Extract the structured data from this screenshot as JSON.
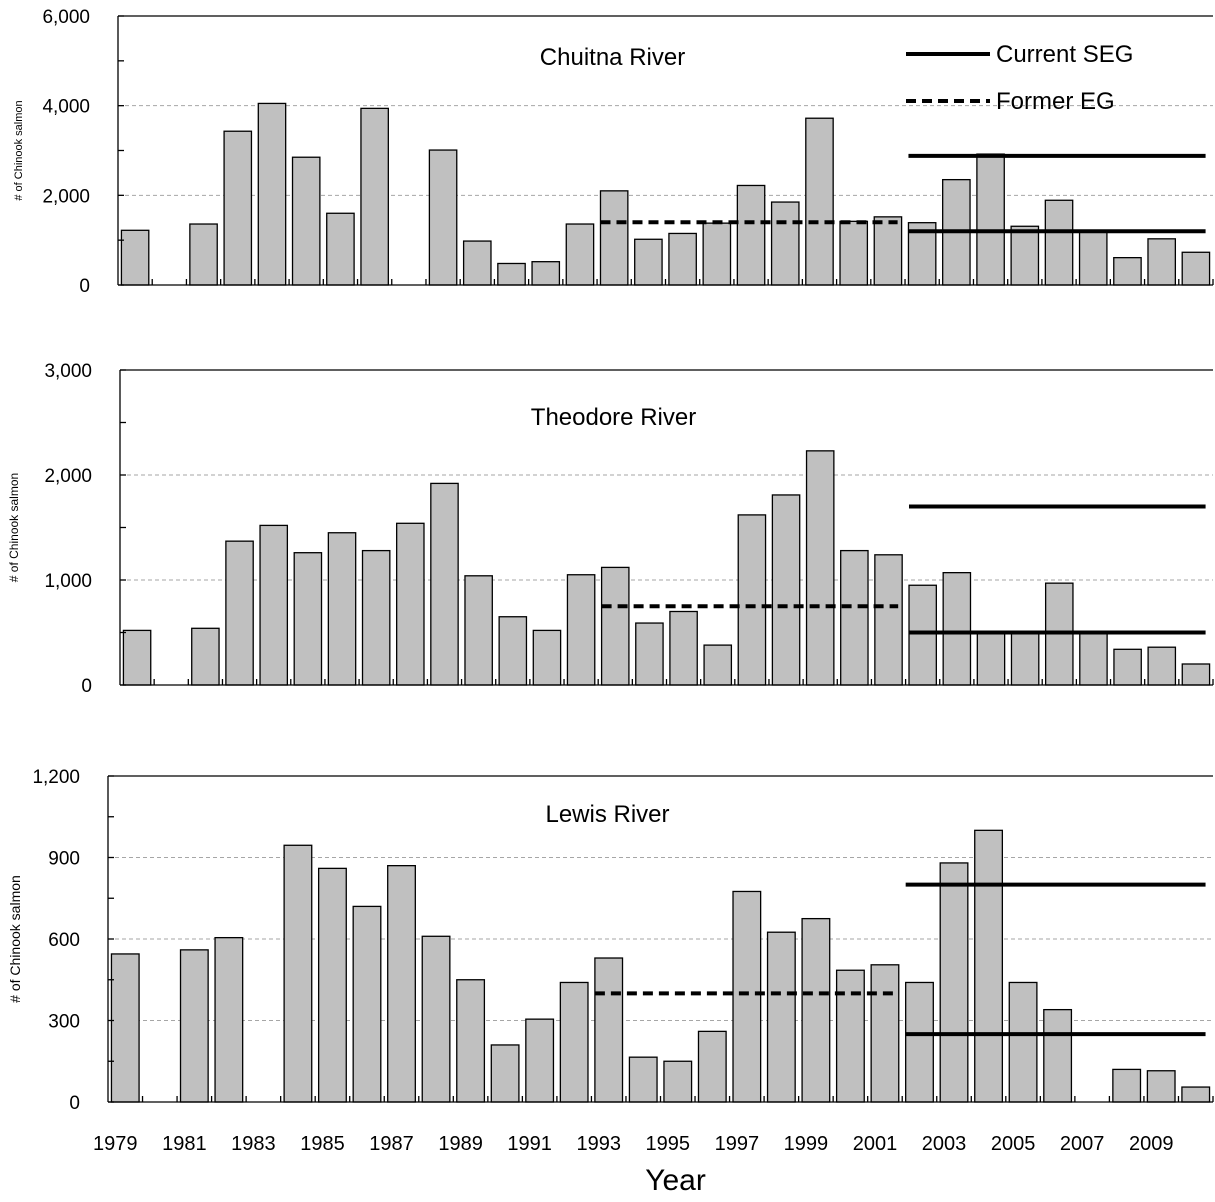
{
  "chart_data": [
    {
      "type": "bar",
      "title": "Chuitna River",
      "ylabel": "# of Chinook salmon",
      "ylim": [
        0,
        6000
      ],
      "yticks": [
        "0",
        "2,000",
        "4,000",
        "6,000"
      ],
      "ytick_values": [
        0,
        2000,
        4000,
        6000
      ],
      "gridlines": [
        2000,
        4000
      ],
      "categories": [
        1979,
        1980,
        1981,
        1982,
        1983,
        1984,
        1985,
        1986,
        1987,
        1988,
        1989,
        1990,
        1991,
        1992,
        1993,
        1994,
        1995,
        1996,
        1997,
        1998,
        1999,
        2000,
        2001,
        2002,
        2003,
        2004,
        2005,
        2006,
        2007,
        2008,
        2009,
        2010
      ],
      "values": [
        1220,
        0,
        1360,
        3430,
        4050,
        2850,
        1600,
        3940,
        0,
        3010,
        980,
        480,
        520,
        1360,
        2100,
        1020,
        1150,
        1380,
        2220,
        1850,
        3720,
        1420,
        1520,
        1390,
        2350,
        2920,
        1310,
        1890,
        1180,
        610,
        1030,
        730
      ],
      "goal_lines": [
        {
          "series": "Current SEG",
          "style": "solid",
          "value": 2880,
          "x_start": 2002,
          "x_end": 2010
        },
        {
          "series": "Current SEG",
          "style": "solid",
          "value": 1200,
          "x_start": 2002,
          "x_end": 2010
        },
        {
          "series": "Former EG",
          "style": "dashed",
          "value": 1400,
          "x_start": 1993,
          "x_end": 2001
        }
      ],
      "legend": {
        "placement": "top-right",
        "entries": [
          {
            "label": "Current SEG",
            "style": "solid"
          },
          {
            "label": "Former EG",
            "style": "dashed"
          }
        ]
      }
    },
    {
      "type": "bar",
      "title": "Theodore River",
      "ylabel": "# of Chinook salmon",
      "ylim": [
        0,
        3000
      ],
      "yticks": [
        "0",
        "1,000",
        "2,000",
        "3,000"
      ],
      "ytick_values": [
        0,
        1000,
        2000,
        3000
      ],
      "gridlines": [
        1000,
        2000
      ],
      "categories": [
        1979,
        1980,
        1981,
        1982,
        1983,
        1984,
        1985,
        1986,
        1987,
        1988,
        1989,
        1990,
        1991,
        1992,
        1993,
        1994,
        1995,
        1996,
        1997,
        1998,
        1999,
        2000,
        2001,
        2002,
        2003,
        2004,
        2005,
        2006,
        2007,
        2008,
        2009,
        2010
      ],
      "values": [
        520,
        0,
        540,
        1370,
        1520,
        1260,
        1450,
        1280,
        1540,
        1920,
        1040,
        650,
        520,
        1050,
        1120,
        590,
        700,
        380,
        1620,
        1810,
        2230,
        1280,
        1240,
        950,
        1070,
        500,
        500,
        970,
        500,
        340,
        360,
        200
      ],
      "goal_lines": [
        {
          "series": "Current SEG",
          "style": "solid",
          "value": 1700,
          "x_start": 2002,
          "x_end": 2010
        },
        {
          "series": "Current SEG",
          "style": "solid",
          "value": 500,
          "x_start": 2002,
          "x_end": 2010
        },
        {
          "series": "Former EG",
          "style": "dashed",
          "value": 750,
          "x_start": 1993,
          "x_end": 2001
        }
      ]
    },
    {
      "type": "bar",
      "title": "Lewis River",
      "xlabel": "Year",
      "ylabel": "# of Chinook salmon",
      "ylim": [
        0,
        1200
      ],
      "yticks": [
        "0",
        "300",
        "600",
        "900",
        "1,200"
      ],
      "ytick_values": [
        0,
        300,
        600,
        900,
        1200
      ],
      "gridlines": [
        300,
        600,
        900
      ],
      "categories": [
        1979,
        1980,
        1981,
        1982,
        1983,
        1984,
        1985,
        1986,
        1987,
        1988,
        1989,
        1990,
        1991,
        1992,
        1993,
        1994,
        1995,
        1996,
        1997,
        1998,
        1999,
        2000,
        2001,
        2002,
        2003,
        2004,
        2005,
        2006,
        2007,
        2008,
        2009,
        2010
      ],
      "values": [
        545,
        0,
        560,
        605,
        0,
        945,
        860,
        720,
        870,
        610,
        450,
        210,
        305,
        440,
        530,
        165,
        150,
        260,
        775,
        625,
        675,
        485,
        505,
        440,
        880,
        1000,
        440,
        340,
        0,
        120,
        115,
        55
      ],
      "goal_lines": [
        {
          "series": "Current SEG",
          "style": "solid",
          "value": 800,
          "x_start": 2002,
          "x_end": 2010
        },
        {
          "series": "Current SEG",
          "style": "solid",
          "value": 250,
          "x_start": 2002,
          "x_end": 2010
        },
        {
          "series": "Former EG",
          "style": "dashed",
          "value": 400,
          "x_start": 1993,
          "x_end": 2001
        }
      ],
      "xtick_labels": [
        "1979",
        "1981",
        "1983",
        "1985",
        "1987",
        "1989",
        "1991",
        "1993",
        "1995",
        "1997",
        "1999",
        "2001",
        "2003",
        "2005",
        "2007",
        "2009"
      ]
    }
  ]
}
